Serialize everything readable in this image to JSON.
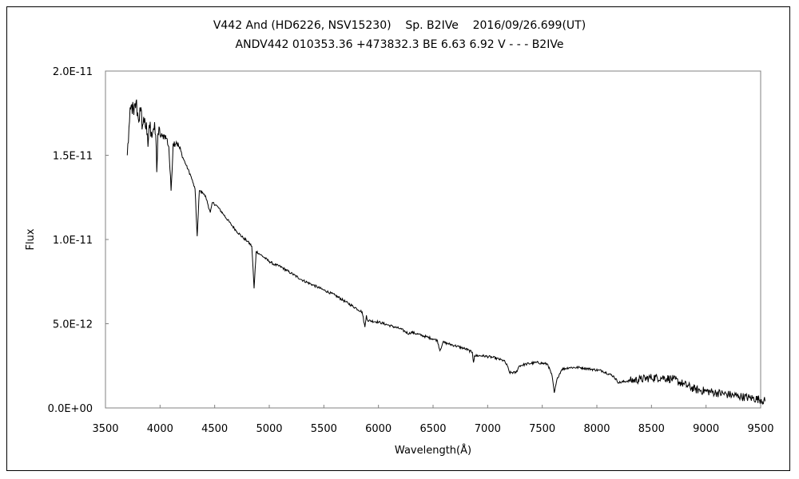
{
  "chart_data": {
    "type": "line",
    "title": "V442 And (HD6226, NSV15230)    Sp. B2IVe    2016/09/26.699(UT)",
    "subtitle": "ANDV442 010353.36 +473832.3 BE 6.63 6.92 V - - - B2IVe",
    "xlabel": "Wavelength(Å)",
    "ylabel": "Flux",
    "xlim": [
      3500,
      9500
    ],
    "ylim": [
      0,
      2e-11
    ],
    "grid": false,
    "legend": "none",
    "x_ticks": [
      "3500",
      "4000",
      "4500",
      "5000",
      "5500",
      "6000",
      "6500",
      "7000",
      "7500",
      "8000",
      "8500",
      "9000",
      "9500"
    ],
    "y_ticks": [
      "0.0E+00",
      "5.0E-12",
      "1.0E-11",
      "1.5E-11",
      "2.0E-11"
    ],
    "series": [
      {
        "line_color": "#000000",
        "points": [
          [
            3700,
            1.5e-11
          ],
          [
            3720,
            1.7e-11
          ],
          [
            3740,
            1.8e-11
          ],
          [
            3760,
            1.74e-11
          ],
          [
            3780,
            1.82e-11
          ],
          [
            3800,
            1.72e-11
          ],
          [
            3820,
            1.76e-11
          ],
          [
            3840,
            1.68e-11
          ],
          [
            3860,
            1.72e-11
          ],
          [
            3880,
            1.62e-11
          ],
          [
            3889,
            1.55e-11
          ],
          [
            3900,
            1.68e-11
          ],
          [
            3920,
            1.64e-11
          ],
          [
            3940,
            1.66e-11
          ],
          [
            3960,
            1.62e-11
          ],
          [
            3970,
            1.4e-11
          ],
          [
            3980,
            1.63e-11
          ],
          [
            4000,
            1.62e-11
          ],
          [
            4020,
            1.61e-11
          ],
          [
            4040,
            1.62e-11
          ],
          [
            4060,
            1.6e-11
          ],
          [
            4080,
            1.55e-11
          ],
          [
            4101,
            1.29e-11
          ],
          [
            4120,
            1.57e-11
          ],
          [
            4150,
            1.58e-11
          ],
          [
            4180,
            1.54e-11
          ],
          [
            4200,
            1.5e-11
          ],
          [
            4240,
            1.44e-11
          ],
          [
            4280,
            1.38e-11
          ],
          [
            4300,
            1.34e-11
          ],
          [
            4320,
            1.3e-11
          ],
          [
            4340,
            1.02e-11
          ],
          [
            4360,
            1.29e-11
          ],
          [
            4390,
            1.28e-11
          ],
          [
            4420,
            1.25e-11
          ],
          [
            4460,
            1.16e-11
          ],
          [
            4480,
            1.22e-11
          ],
          [
            4520,
            1.2e-11
          ],
          [
            4580,
            1.15e-11
          ],
          [
            4650,
            1.09e-11
          ],
          [
            4700,
            1.05e-11
          ],
          [
            4760,
            1.01e-11
          ],
          [
            4800,
            9.9e-12
          ],
          [
            4840,
            9.6e-12
          ],
          [
            4861,
            7.1e-12
          ],
          [
            4880,
            9.3e-12
          ],
          [
            4920,
            9.1e-12
          ],
          [
            4960,
            8.9e-12
          ],
          [
            5000,
            8.7e-12
          ],
          [
            5050,
            8.5e-12
          ],
          [
            5100,
            8.4e-12
          ],
          [
            5200,
            8e-12
          ],
          [
            5300,
            7.6e-12
          ],
          [
            5400,
            7.3e-12
          ],
          [
            5500,
            7e-12
          ],
          [
            5600,
            6.7e-12
          ],
          [
            5700,
            6.3e-12
          ],
          [
            5800,
            5.9e-12
          ],
          [
            5850,
            5.7e-12
          ],
          [
            5876,
            4.8e-12
          ],
          [
            5890,
            5.5e-12
          ],
          [
            5900,
            5.2e-12
          ],
          [
            6000,
            5.1e-12
          ],
          [
            6100,
            4.9e-12
          ],
          [
            6200,
            4.7e-12
          ],
          [
            6280,
            4.4e-12
          ],
          [
            6300,
            4.5e-12
          ],
          [
            6400,
            4.3e-12
          ],
          [
            6500,
            4.1e-12
          ],
          [
            6540,
            4e-12
          ],
          [
            6563,
            3.4e-12
          ],
          [
            6590,
            3.9e-12
          ],
          [
            6700,
            3.7e-12
          ],
          [
            6800,
            3.5e-12
          ],
          [
            6860,
            3.3e-12
          ],
          [
            6870,
            2.7e-12
          ],
          [
            6880,
            3.1e-12
          ],
          [
            6950,
            3.1e-12
          ],
          [
            7050,
            3e-12
          ],
          [
            7150,
            2.8e-12
          ],
          [
            7180,
            2.5e-12
          ],
          [
            7200,
            2.1e-12
          ],
          [
            7260,
            2.1e-12
          ],
          [
            7290,
            2.5e-12
          ],
          [
            7350,
            2.6e-12
          ],
          [
            7450,
            2.7e-12
          ],
          [
            7550,
            2.6e-12
          ],
          [
            7590,
            1.9e-12
          ],
          [
            7610,
            9e-13
          ],
          [
            7640,
            1.8e-12
          ],
          [
            7680,
            2.3e-12
          ],
          [
            7750,
            2.4e-12
          ],
          [
            7850,
            2.4e-12
          ],
          [
            7950,
            2.3e-12
          ],
          [
            8050,
            2.2e-12
          ],
          [
            8150,
            1.9e-12
          ],
          [
            8200,
            1.5e-12
          ],
          [
            8280,
            1.6e-12
          ],
          [
            8400,
            1.7e-12
          ],
          [
            8500,
            1.8e-12
          ],
          [
            8600,
            1.8e-12
          ],
          [
            8700,
            1.7e-12
          ],
          [
            8800,
            1.4e-12
          ],
          [
            8900,
            1.1e-12
          ],
          [
            9000,
            1e-12
          ],
          [
            9100,
            9e-13
          ],
          [
            9200,
            8e-13
          ],
          [
            9300,
            7e-13
          ],
          [
            9400,
            6e-13
          ],
          [
            9500,
            5e-13
          ],
          [
            9540,
            4e-13
          ]
        ]
      }
    ]
  }
}
